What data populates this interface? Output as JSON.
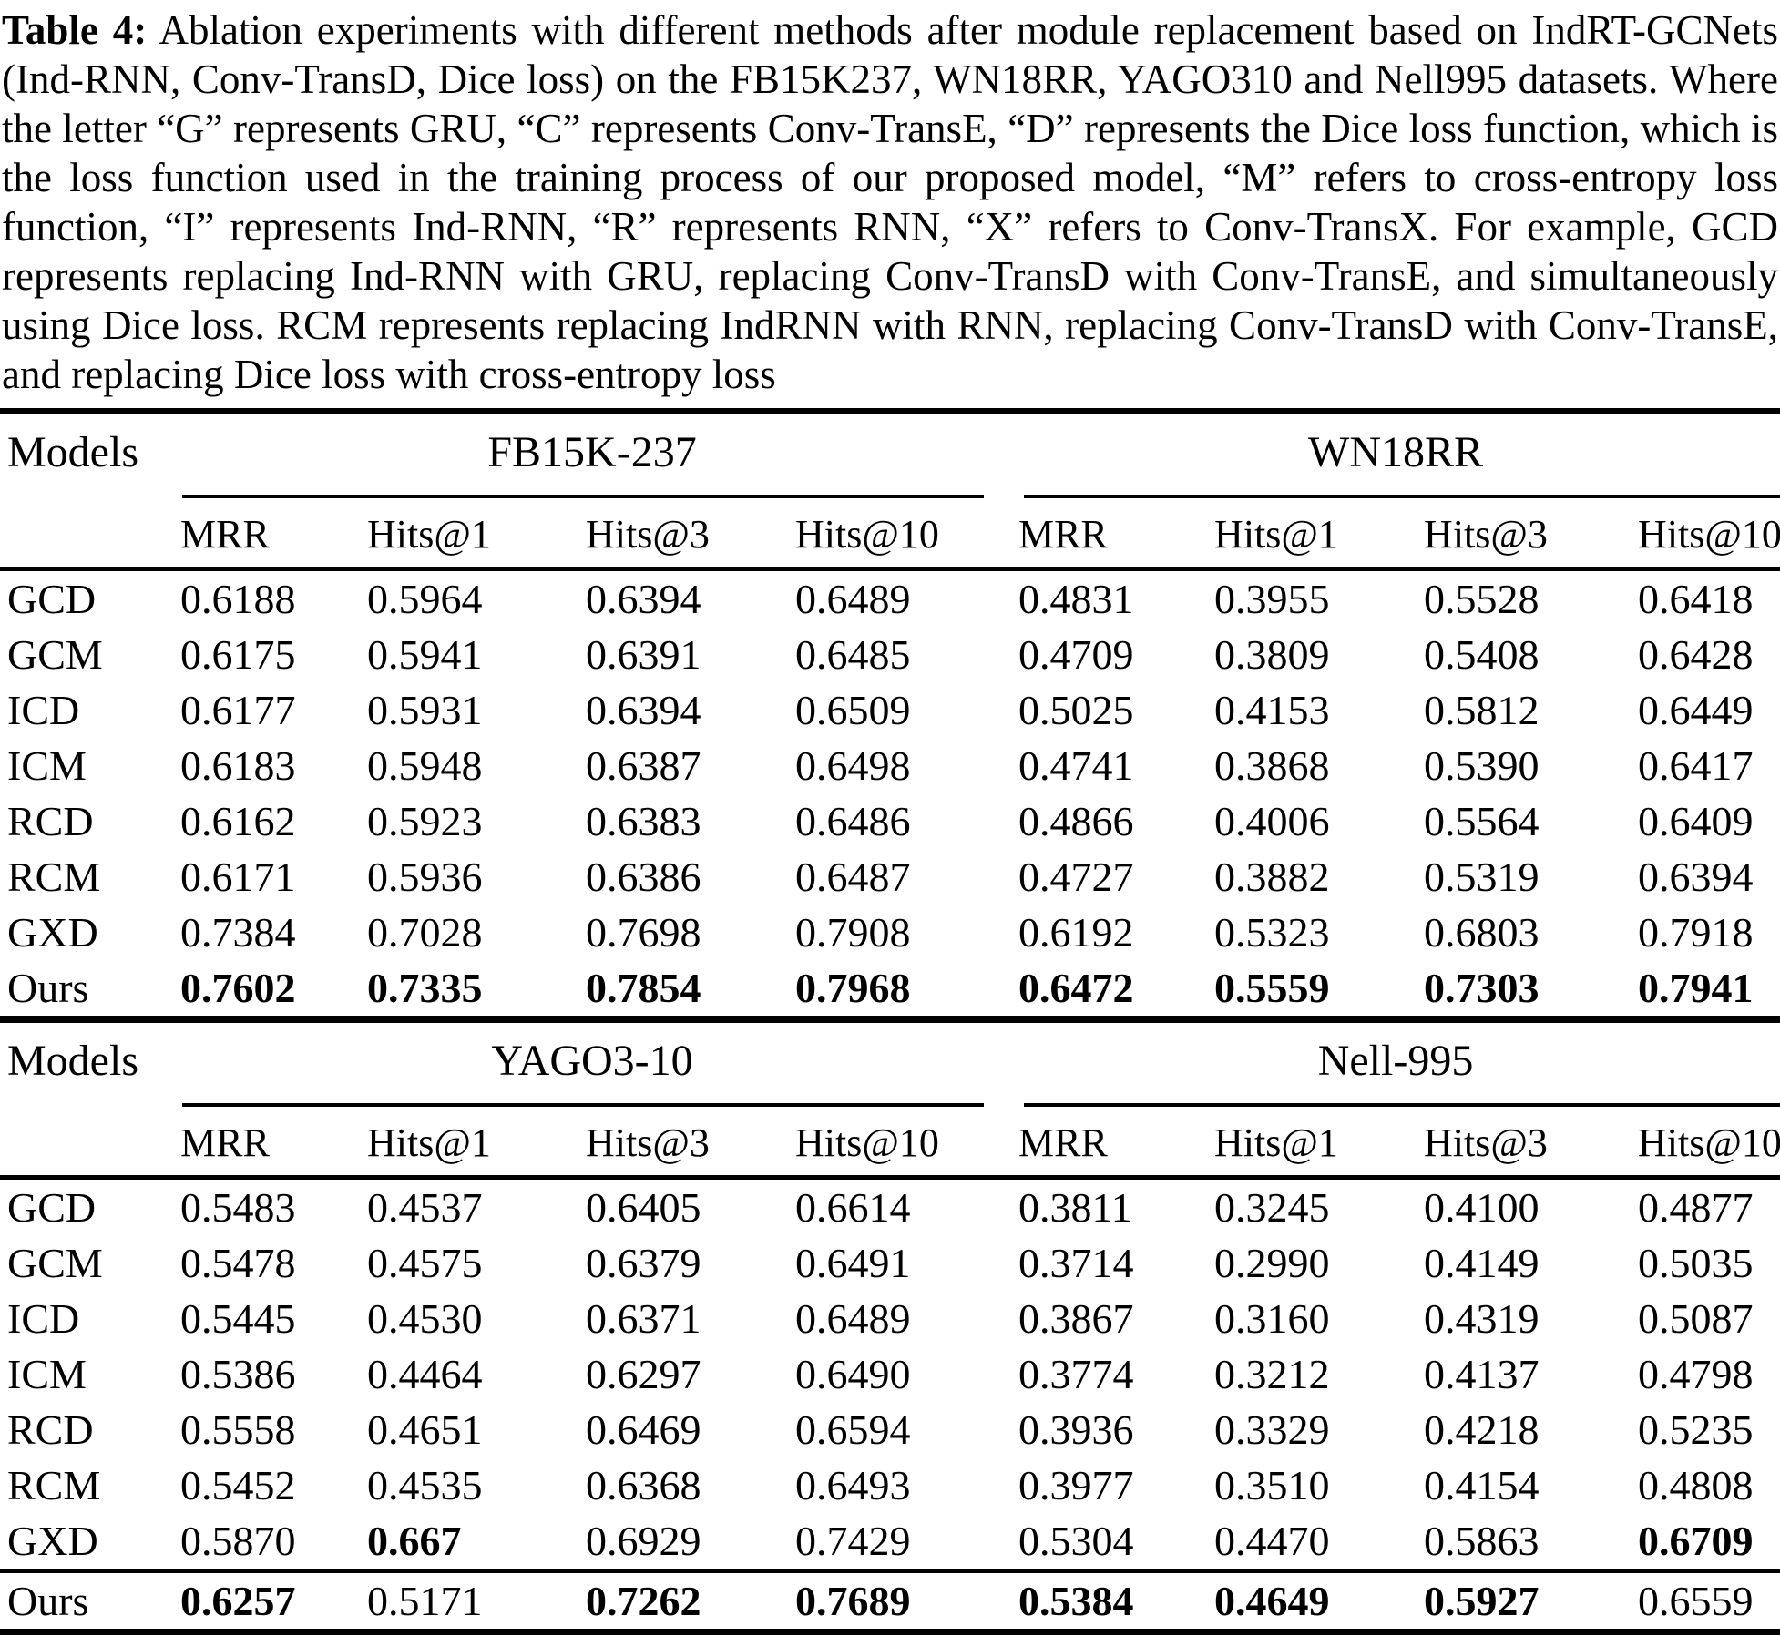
{
  "caption": {
    "label": "Table 4:",
    "text": " Ablation experiments with different methods after module replacement based on IndRT-GCNets (Ind-RNN, Conv-TransD, Dice loss) on the FB15K237, WN18RR, YAGO310 and Nell995 datasets. Where the letter “G” represents GRU, “C” represents Conv-TransE, “D” represents the Dice loss function, which is the loss function used in the training process of our proposed model, “M” refers to cross-entropy loss function, “I” represents Ind-RNN, “R” represents RNN, “X” refers to Conv-TransX. For example, GCD represents replacing Ind-RNN with GRU, replacing Conv-TransD with Conv-TransE, and simultaneously using Dice loss. RCM represents replacing IndRNN with RNN, replacing Conv-TransD with Conv-TransE, and replacing Dice loss with cross-entropy loss"
  },
  "tables": [
    {
      "models_header": "Models",
      "groups": [
        {
          "name": "FB15K-237"
        },
        {
          "name": "WN18RR"
        }
      ],
      "metrics": [
        "MRR",
        "Hits@1",
        "Hits@3",
        "Hits@10",
        "MRR",
        "Hits@1",
        "Hits@3",
        "Hits@10"
      ],
      "rows": [
        {
          "label": "GCD",
          "values": [
            "0.6188",
            "0.5964",
            "0.6394",
            "0.6489",
            "0.4831",
            "0.3955",
            "0.5528",
            "0.6418"
          ],
          "bold": [
            false,
            false,
            false,
            false,
            false,
            false,
            false,
            false
          ],
          "separator_above": false
        },
        {
          "label": "GCM",
          "values": [
            "0.6175",
            "0.5941",
            "0.6391",
            "0.6485",
            "0.4709",
            "0.3809",
            "0.5408",
            "0.6428"
          ],
          "bold": [
            false,
            false,
            false,
            false,
            false,
            false,
            false,
            false
          ],
          "separator_above": false
        },
        {
          "label": "ICD",
          "values": [
            "0.6177",
            "0.5931",
            "0.6394",
            "0.6509",
            "0.5025",
            "0.4153",
            "0.5812",
            "0.6449"
          ],
          "bold": [
            false,
            false,
            false,
            false,
            false,
            false,
            false,
            false
          ],
          "separator_above": false
        },
        {
          "label": "ICM",
          "values": [
            "0.6183",
            "0.5948",
            "0.6387",
            "0.6498",
            "0.4741",
            "0.3868",
            "0.5390",
            "0.6417"
          ],
          "bold": [
            false,
            false,
            false,
            false,
            false,
            false,
            false,
            false
          ],
          "separator_above": false
        },
        {
          "label": "RCD",
          "values": [
            "0.6162",
            "0.5923",
            "0.6383",
            "0.6486",
            "0.4866",
            "0.4006",
            "0.5564",
            "0.6409"
          ],
          "bold": [
            false,
            false,
            false,
            false,
            false,
            false,
            false,
            false
          ],
          "separator_above": false
        },
        {
          "label": "RCM",
          "values": [
            "0.6171",
            "0.5936",
            "0.6386",
            "0.6487",
            "0.4727",
            "0.3882",
            "0.5319",
            "0.6394"
          ],
          "bold": [
            false,
            false,
            false,
            false,
            false,
            false,
            false,
            false
          ],
          "separator_above": false
        },
        {
          "label": "GXD",
          "values": [
            "0.7384",
            "0.7028",
            "0.7698",
            "0.7908",
            "0.6192",
            "0.5323",
            "0.6803",
            "0.7918"
          ],
          "bold": [
            false,
            false,
            false,
            false,
            false,
            false,
            false,
            false
          ],
          "separator_above": false
        },
        {
          "label": "Ours",
          "values": [
            "0.7602",
            "0.7335",
            "0.7854",
            "0.7968",
            "0.6472",
            "0.5559",
            "0.7303",
            "0.7941"
          ],
          "bold": [
            true,
            true,
            true,
            true,
            true,
            true,
            true,
            true
          ],
          "separator_above": false
        }
      ]
    },
    {
      "models_header": "Models",
      "groups": [
        {
          "name": "YAGO3-10"
        },
        {
          "name": "Nell-995"
        }
      ],
      "metrics": [
        "MRR",
        "Hits@1",
        "Hits@3",
        "Hits@10",
        "MRR",
        "Hits@1",
        "Hits@3",
        "Hits@10"
      ],
      "rows": [
        {
          "label": "GCD",
          "values": [
            "0.5483",
            "0.4537",
            "0.6405",
            "0.6614",
            "0.3811",
            "0.3245",
            "0.4100",
            "0.4877"
          ],
          "bold": [
            false,
            false,
            false,
            false,
            false,
            false,
            false,
            false
          ],
          "separator_above": false
        },
        {
          "label": "GCM",
          "values": [
            "0.5478",
            "0.4575",
            "0.6379",
            "0.6491",
            "0.3714",
            "0.2990",
            "0.4149",
            "0.5035"
          ],
          "bold": [
            false,
            false,
            false,
            false,
            false,
            false,
            false,
            false
          ],
          "separator_above": false
        },
        {
          "label": "ICD",
          "values": [
            "0.5445",
            "0.4530",
            "0.6371",
            "0.6489",
            "0.3867",
            "0.3160",
            "0.4319",
            "0.5087"
          ],
          "bold": [
            false,
            false,
            false,
            false,
            false,
            false,
            false,
            false
          ],
          "separator_above": false
        },
        {
          "label": "ICM",
          "values": [
            "0.5386",
            "0.4464",
            "0.6297",
            "0.6490",
            "0.3774",
            "0.3212",
            "0.4137",
            "0.4798"
          ],
          "bold": [
            false,
            false,
            false,
            false,
            false,
            false,
            false,
            false
          ],
          "separator_above": false
        },
        {
          "label": "RCD",
          "values": [
            "0.5558",
            "0.4651",
            "0.6469",
            "0.6594",
            "0.3936",
            "0.3329",
            "0.4218",
            "0.5235"
          ],
          "bold": [
            false,
            false,
            false,
            false,
            false,
            false,
            false,
            false
          ],
          "separator_above": false
        },
        {
          "label": "RCM",
          "values": [
            "0.5452",
            "0.4535",
            "0.6368",
            "0.6493",
            "0.3977",
            "0.3510",
            "0.4154",
            "0.4808"
          ],
          "bold": [
            false,
            false,
            false,
            false,
            false,
            false,
            false,
            false
          ],
          "separator_above": false
        },
        {
          "label": "GXD",
          "values": [
            "0.5870",
            "0.667",
            "0.6929",
            "0.7429",
            "0.5304",
            "0.4470",
            "0.5863",
            "0.6709"
          ],
          "bold": [
            false,
            true,
            false,
            false,
            false,
            false,
            false,
            true
          ],
          "separator_above": false
        },
        {
          "label": "Ours",
          "values": [
            "0.6257",
            "0.5171",
            "0.7262",
            "0.7689",
            "0.5384",
            "0.4649",
            "0.5927",
            "0.6559"
          ],
          "bold": [
            true,
            false,
            true,
            true,
            true,
            true,
            true,
            false
          ],
          "separator_above": true
        }
      ]
    }
  ]
}
